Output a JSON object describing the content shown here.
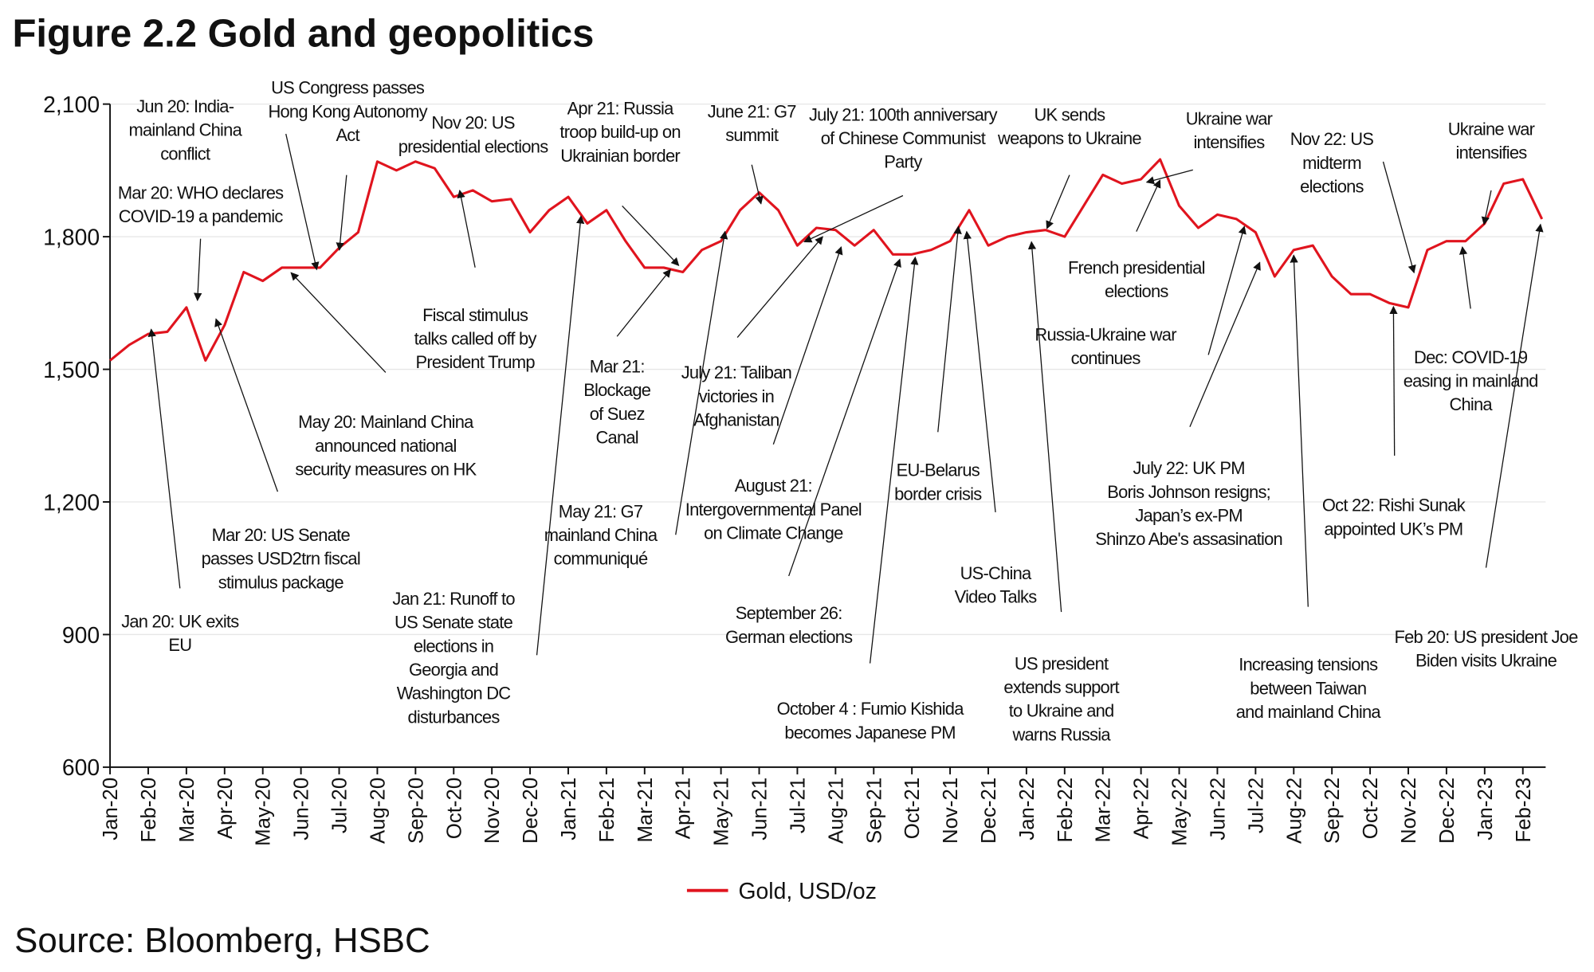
{
  "chart_data": {
    "type": "line",
    "title": "Figure 2.2    Gold and geopolitics",
    "source": "Source: Bloomberg, HSBC",
    "categories": [
      "Jan-20",
      null,
      "Feb-20",
      null,
      "Mar-20",
      null,
      "Apr-20",
      null,
      "May-20",
      null,
      "Jun-20",
      null,
      "Jul-20",
      null,
      "Aug-20",
      null,
      "Sep-20",
      null,
      "Oct-20",
      null,
      "Nov-20",
      null,
      "Dec-20",
      null,
      "Jan-21",
      null,
      "Feb-21",
      null,
      "Mar-21",
      null,
      "Apr-21",
      null,
      "May-21",
      null,
      "Jun-21",
      null,
      "Jul-21",
      null,
      "Aug-21",
      null,
      "Sep-21",
      null,
      "Oct-21",
      null,
      "Nov-21",
      null,
      "Dec-21",
      null,
      "Jan-22",
      null,
      "Feb-22",
      null,
      "Mar-22",
      null,
      "Apr-22",
      null,
      "May-22",
      null,
      "Jun-22",
      null,
      "Jul-22",
      null,
      "Aug-22",
      null,
      "Sep-22",
      null,
      "Oct-22",
      null,
      "Nov-22",
      null,
      "Dec-22",
      null,
      "Jan-23",
      null,
      "Feb-23",
      null
    ],
    "series": [
      {
        "name": "Gold, USD/oz",
        "color": "#e0141e",
        "values": [
          1520,
          1555,
          1580,
          1585,
          1640,
          1520,
          1600,
          1720,
          1700,
          1730,
          1730,
          1730,
          1775,
          1810,
          1970,
          1950,
          1970,
          1955,
          1890,
          1905,
          1880,
          1885,
          1810,
          1860,
          1890,
          1830,
          1860,
          1790,
          1730,
          1730,
          1720,
          1770,
          1790,
          1860,
          1900,
          1860,
          1780,
          1820,
          1815,
          1780,
          1815,
          1760,
          1760,
          1770,
          1790,
          1860,
          1780,
          1800,
          1810,
          1815,
          1800,
          1870,
          1940,
          1920,
          1930,
          1975,
          1870,
          1820,
          1850,
          1840,
          1810,
          1710,
          1770,
          1780,
          1710,
          1670,
          1670,
          1650,
          1640,
          1770,
          1790,
          1790,
          1830,
          1920,
          1930,
          1840
        ]
      }
    ],
    "ylim": [
      600,
      2100
    ],
    "yticks": [
      600,
      900,
      {
        "value": 1200,
        "label": "1,200"
      },
      {
        "value": 1500,
        "label": "1,500"
      },
      {
        "value": 1800,
        "label": "1,800"
      },
      {
        "value": 2100,
        "label": "2,100"
      }
    ],
    "grid": true,
    "legend": "bottom",
    "annotations": [
      [
        "Jun 20: India-",
        "mainland China",
        "conflict"
      ],
      [
        "US Congress passes",
        "Hong Kong Autonomy",
        "Act"
      ],
      [
        "Mar 20: WHO declares",
        "COVID-19 a pandemic"
      ],
      [
        "Nov 20: US",
        "presidential elections"
      ],
      [
        "Apr 21: Russia",
        "troop build-up on",
        "Ukrainian border"
      ],
      [
        "June 21: G7",
        "summit"
      ],
      [
        "July 21: 100th anniversary",
        "of Chinese Communist",
        "Party"
      ],
      [
        "UK sends",
        "weapons to Ukraine"
      ],
      [
        "Ukraine war",
        "intensifies"
      ],
      [
        "Nov 22: US",
        "midterm",
        "elections"
      ],
      [
        "Ukraine war",
        "intensifies"
      ],
      [
        "Fiscal stimulus",
        "talks called off by",
        "President Trump"
      ],
      [
        "May 20: Mainland China",
        "announced national",
        "security measures on HK"
      ],
      [
        "Mar 20: US Senate",
        "passes USD2trn fiscal",
        "stimulus package"
      ],
      [
        "Jan 20: UK exits",
        "EU"
      ],
      [
        "Mar 21:",
        "Blockage",
        "of Suez",
        "Canal"
      ],
      [
        "July 21: Taliban",
        "victories in",
        "Afghanistan"
      ],
      [
        "May 21: G7",
        "mainland China",
        "communiqué"
      ],
      [
        "August 21:",
        "Intergovernmental Panel",
        "on Climate Change"
      ],
      [
        "September 26:",
        "German elections"
      ],
      [
        "October 4 : Fumio Kishida",
        "becomes Japanese PM"
      ],
      [
        "EU-Belarus",
        "border crisis"
      ],
      [
        "US-China",
        "Video Talks"
      ],
      [
        "Jan 21: Runoff to",
        "US Senate state",
        "elections in",
        "Georgia and",
        "Washington DC",
        "disturbances"
      ],
      [
        "French presidential",
        "elections"
      ],
      [
        "Russia-Ukraine war",
        "continues"
      ],
      [
        "US president",
        "extends support",
        "to Ukraine and",
        "warns Russia"
      ],
      [
        "July 22: UK PM",
        "Boris Johnson resigns;",
        "Japan’s ex-PM",
        "Shinzo Abe's assasination"
      ],
      [
        "Increasing tensions",
        "between Taiwan",
        "and mainland China"
      ],
      [
        "Oct 22: Rishi Sunak",
        "appointed UK’s PM"
      ],
      [
        "Dec: COVID-19",
        "easing in mainland",
        "China"
      ],
      [
        "Feb 20: US president Joe",
        "Biden visits Ukraine"
      ]
    ]
  }
}
